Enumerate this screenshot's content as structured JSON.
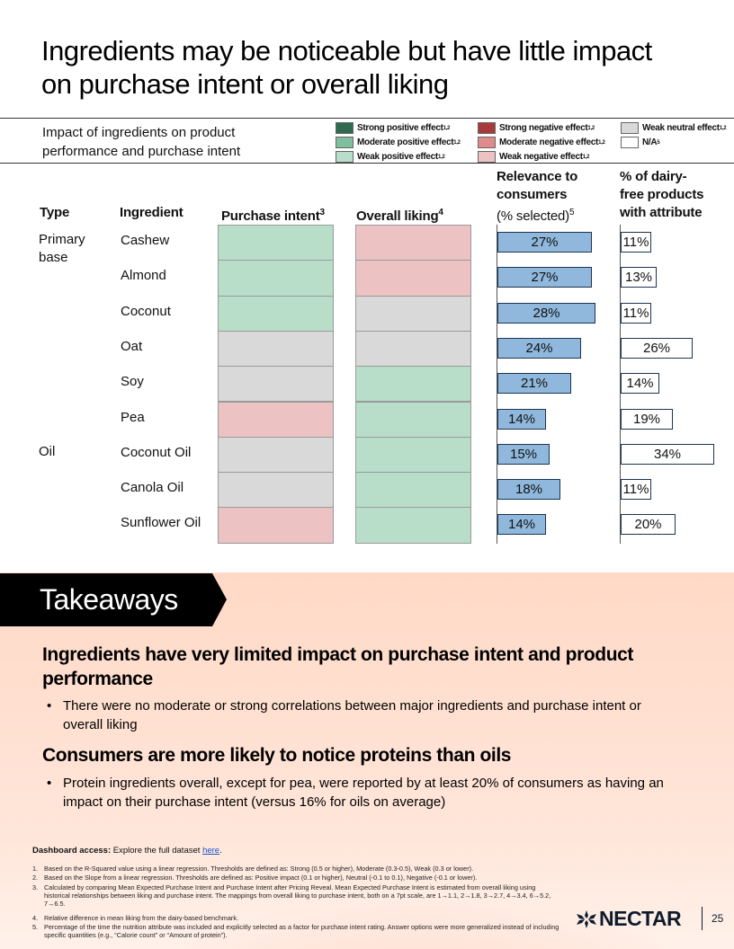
{
  "title": "Ingredients may be noticeable but have little impact on purchase intent or overall liking",
  "subtitle": "Impact of ingredients on product performance and purchase intent",
  "colors": {
    "strong_positive": "#2e6b4f",
    "moderate_positive": "#7fbf9e",
    "weak_positive": "#b8dec9",
    "strong_negative": "#a83a3a",
    "moderate_negative": "#e08b8b",
    "weak_negative": "#ecc2c2",
    "weak_neutral": "#d9d9d9",
    "na": "#ffffff",
    "relevance_bar": "#8fb8dc"
  },
  "legend": [
    {
      "label": "Strong positive effect",
      "sup": "1,2",
      "color_key": "strong_positive"
    },
    {
      "label": "Moderate positive effect",
      "sup": "1,2",
      "color_key": "moderate_positive"
    },
    {
      "label": "Weak positive effect",
      "sup": "1,2",
      "color_key": "weak_positive"
    },
    {
      "label": "Strong negative effect",
      "sup": "1,2",
      "color_key": "strong_negative"
    },
    {
      "label": "Moderate negative effect",
      "sup": "1,2",
      "color_key": "moderate_negative"
    },
    {
      "label": "Weak negative effect",
      "sup": "1,2",
      "color_key": "weak_negative"
    },
    {
      "label": "Weak neutral effect",
      "sup": "1,2",
      "color_key": "weak_neutral"
    },
    {
      "label": "N/A",
      "sup": "5",
      "color_key": "na"
    }
  ],
  "headers": {
    "type": "Type",
    "ingredient": "Ingredient",
    "purchase_intent": "Purchase intent",
    "purchase_intent_sup": "3",
    "overall_liking": "Overall liking",
    "overall_liking_sup": "4",
    "relevance_line1": "Relevance to",
    "relevance_line2": "consumers",
    "relevance_line3": "(% selected)",
    "relevance_sup": "5",
    "dairy_free_line1": "% of dairy-",
    "dairy_free_line2": "free products",
    "dairy_free_line3": "with attribute"
  },
  "types": [
    {
      "label": "Primary base",
      "row": 0
    },
    {
      "label": "Oil",
      "row": 6
    }
  ],
  "rows": [
    {
      "ingredient": "Cashew",
      "purchase_intent": "weak_positive",
      "overall_liking": "weak_negative",
      "relevance": 27,
      "relevance_label": "27%",
      "dairy_free": 11,
      "dairy_free_label": "11%"
    },
    {
      "ingredient": "Almond",
      "purchase_intent": "weak_positive",
      "overall_liking": "weak_negative",
      "relevance": 27,
      "relevance_label": "27%",
      "dairy_free": 13,
      "dairy_free_label": "13%"
    },
    {
      "ingredient": "Coconut",
      "purchase_intent": "weak_positive",
      "overall_liking": "weak_neutral",
      "relevance": 28,
      "relevance_label": "28%",
      "dairy_free": 11,
      "dairy_free_label": "11%"
    },
    {
      "ingredient": "Oat",
      "purchase_intent": "weak_neutral",
      "overall_liking": "weak_neutral",
      "relevance": 24,
      "relevance_label": "24%",
      "dairy_free": 26,
      "dairy_free_label": "26%"
    },
    {
      "ingredient": "Soy",
      "purchase_intent": "weak_neutral",
      "overall_liking": "weak_positive",
      "relevance": 21,
      "relevance_label": "21%",
      "dairy_free": 14,
      "dairy_free_label": "14%"
    },
    {
      "ingredient": "Pea",
      "purchase_intent": "weak_negative",
      "overall_liking": "weak_positive",
      "relevance": 14,
      "relevance_label": "14%",
      "dairy_free": 19,
      "dairy_free_label": "19%"
    },
    {
      "ingredient": "Coconut Oil",
      "purchase_intent": "weak_neutral",
      "overall_liking": "weak_positive",
      "relevance": 15,
      "relevance_label": "15%",
      "dairy_free": 34,
      "dairy_free_label": "34%"
    },
    {
      "ingredient": "Canola Oil",
      "purchase_intent": "weak_neutral",
      "overall_liking": "weak_positive",
      "relevance": 18,
      "relevance_label": "18%",
      "dairy_free": 11,
      "dairy_free_label": "11%"
    },
    {
      "ingredient": "Sunflower Oil",
      "purchase_intent": "weak_negative",
      "overall_liking": "weak_positive",
      "relevance": 14,
      "relevance_label": "14%",
      "dairy_free": 20,
      "dairy_free_label": "20%"
    }
  ],
  "takeaways": {
    "tab": "Takeaways",
    "h1": "Ingredients have very limited impact on purchase intent and product performance",
    "b1": "There were no moderate or strong correlations between major ingredients and purchase intent or overall liking",
    "h2": "Consumers are more likely to notice proteins than oils",
    "b2": "Protein ingredients overall, except for pea, were reported by at least 20% of consumers as having an impact on their purchase intent (versus 16% for oils on average)",
    "bullet": "•"
  },
  "dashboard": {
    "label": "Dashboard access:",
    "text": "Explore the full dataset",
    "link": "here",
    "end": "."
  },
  "footnotes": [
    {
      "n": "1.",
      "text": "Based on the R-Squared value using a linear regression. Thresholds are defined as: Strong (0.5 or higher), Moderate (0.3-0.5), Weak (0.3 or lower)."
    },
    {
      "n": "2.",
      "text": "Based on the Slope from a linear regression. Thresholds are defined as: Positive impact (0.1 or higher), Neutral (-0.1 to 0.1), Negative (-0.1 or lower)."
    },
    {
      "n": "3.",
      "text": "Calculated by comparing Mean Expected Purchase Intent and Purchase Intent after Pricing Reveal. Mean Expected Purchase Intent is estimated from overall liking using historical relationships between liking and purchase intent. The mappings from overall liking to purchase intent, both on a 7pt scale, are 1→1.1, 2→1.8, 3→2.7, 4→3.4, 6→5.2, 7→6.5."
    },
    {
      "n": "4.",
      "text": "Relative difference in mean liking from the dairy-based benchmark."
    },
    {
      "n": "5.",
      "text": "Percentage of the time the nutrition attribute was included and explicitly selected as a factor for purchase intent rating. Answer options were more generalized instead of including specific quantities (e.g., “Calorie count” or “Amount of protein”)."
    }
  ],
  "logo": "NECTAR",
  "page_number": "25"
}
